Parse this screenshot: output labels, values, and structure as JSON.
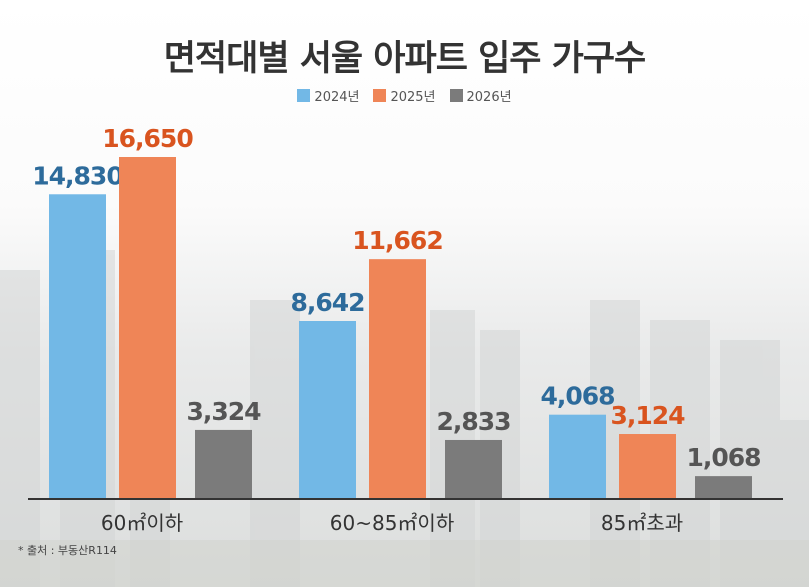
{
  "chart_data": {
    "type": "bar",
    "title": "면적대별 서울 아파트 입주 가구수",
    "categories": [
      "60㎡이하",
      "60~85㎡이하",
      "85㎡초과"
    ],
    "series": [
      {
        "name": "2024년",
        "values": [
          14830,
          8642,
          4068
        ],
        "color": "#72b8e6",
        "label_color": "#2d6b9b"
      },
      {
        "name": "2025년",
        "values": [
          16650,
          11662,
          3124
        ],
        "color": "#ef8557",
        "label_color": "#d9541f"
      },
      {
        "name": "2026년",
        "values": [
          3324,
          2833,
          1068
        ],
        "color": "#7b7b7b",
        "label_color": "#555555"
      }
    ],
    "value_labels": [
      [
        "14,830",
        "8,642",
        "4,068"
      ],
      [
        "16,650",
        "11,662",
        "3,124"
      ],
      [
        "3,324",
        "2,833",
        "1,068"
      ]
    ],
    "ylim": [
      0,
      16650
    ],
    "grid": false,
    "legend": "top-center",
    "source": "* 출처 : 부동산R114"
  }
}
